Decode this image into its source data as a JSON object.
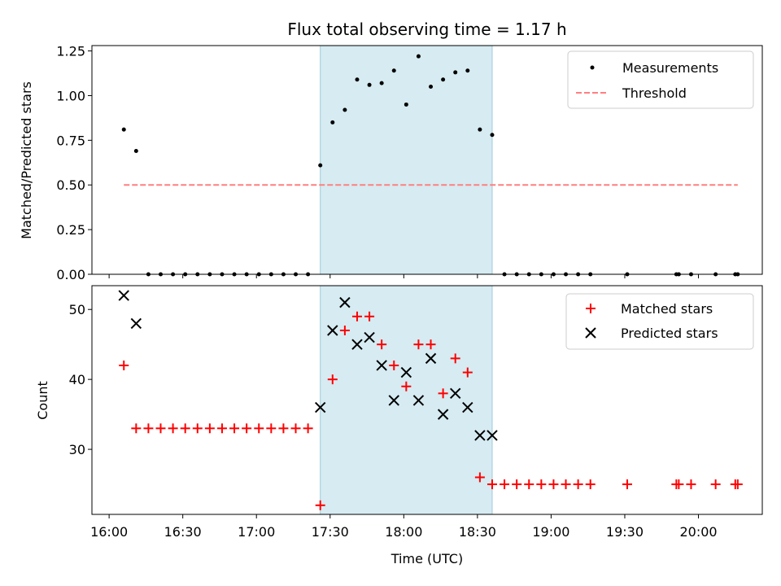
{
  "chart_data": [
    {
      "type": "scatter",
      "title": "Flux total observing time = 1.17 h",
      "xlabel": "",
      "ylabel": "Matched/Predicted stars",
      "xlim": [
        "15:53",
        "20:26"
      ],
      "ylim": [
        0,
        1.28
      ],
      "y_ticks": [
        "0.00",
        "0.25",
        "0.50",
        "0.75",
        "1.00",
        "1.25"
      ],
      "grid": false,
      "legend_position": "top-right",
      "highlight_band": {
        "x_start": "17:26",
        "x_end": "18:36",
        "color": "#add8e6"
      },
      "series": [
        {
          "name": "Measurements",
          "marker": "dot",
          "color": "#000000",
          "x": [
            "16:06",
            "16:11",
            "16:16",
            "16:21",
            "16:26",
            "16:31",
            "16:36",
            "16:41",
            "16:46",
            "16:51",
            "16:56",
            "17:01",
            "17:06",
            "17:11",
            "17:16",
            "17:21",
            "17:26",
            "17:31",
            "17:36",
            "17:41",
            "17:46",
            "17:51",
            "17:56",
            "18:01",
            "18:06",
            "18:11",
            "18:16",
            "18:21",
            "18:26",
            "18:31",
            "18:36",
            "18:41",
            "18:46",
            "18:51",
            "18:56",
            "19:01",
            "19:06",
            "19:11",
            "19:16",
            "19:31",
            "19:51",
            "19:52",
            "19:57",
            "20:07",
            "20:15",
            "20:16"
          ],
          "y": [
            0.81,
            0.69,
            0,
            0,
            0,
            0,
            0,
            0,
            0,
            0,
            0,
            0,
            0,
            0,
            0,
            0,
            0.61,
            0.85,
            0.92,
            1.09,
            1.06,
            1.07,
            1.14,
            0.95,
            1.22,
            1.05,
            1.09,
            1.13,
            1.14,
            0.81,
            0.78,
            0,
            0,
            0,
            0,
            0,
            0,
            0,
            0,
            0,
            0,
            0,
            0,
            0,
            0,
            0
          ]
        },
        {
          "name": "Threshold",
          "style": "dashed",
          "color": "#ff7f7f",
          "x": [
            "16:06",
            "20:16"
          ],
          "y": [
            0.5,
            0.5
          ]
        }
      ]
    },
    {
      "type": "scatter",
      "title": "",
      "xlabel": "Time (UTC)",
      "ylabel": "Count",
      "xlim": [
        "15:53",
        "20:26"
      ],
      "ylim": [
        20.7,
        53.4
      ],
      "y_ticks": [
        "30",
        "40",
        "50"
      ],
      "x_ticks": [
        "16:00",
        "16:30",
        "17:00",
        "17:30",
        "18:00",
        "18:30",
        "19:00",
        "19:30",
        "20:00"
      ],
      "grid": false,
      "legend_position": "top-right",
      "highlight_band": {
        "x_start": "17:26",
        "x_end": "18:36",
        "color": "#add8e6"
      },
      "series": [
        {
          "name": "Matched stars",
          "marker": "plus",
          "color": "#ff0000",
          "x": [
            "16:06",
            "16:11",
            "16:16",
            "16:21",
            "16:26",
            "16:31",
            "16:36",
            "16:41",
            "16:46",
            "16:51",
            "16:56",
            "17:01",
            "17:06",
            "17:11",
            "17:16",
            "17:21",
            "17:26",
            "17:31",
            "17:36",
            "17:41",
            "17:46",
            "17:51",
            "17:56",
            "18:01",
            "18:06",
            "18:11",
            "18:16",
            "18:21",
            "18:26",
            "18:31",
            "18:36",
            "18:41",
            "18:46",
            "18:51",
            "18:56",
            "19:01",
            "19:06",
            "19:11",
            "19:16",
            "19:31",
            "19:51",
            "19:52",
            "19:57",
            "20:07",
            "20:15",
            "20:16"
          ],
          "y": [
            42,
            33,
            33,
            33,
            33,
            33,
            33,
            33,
            33,
            33,
            33,
            33,
            33,
            33,
            33,
            33,
            22,
            40,
            47,
            49,
            49,
            45,
            42,
            39,
            45,
            45,
            38,
            43,
            41,
            26,
            25,
            25,
            25,
            25,
            25,
            25,
            25,
            25,
            25,
            25,
            25,
            25,
            25,
            25,
            25,
            25
          ]
        },
        {
          "name": "Predicted stars",
          "marker": "x",
          "color": "#000000",
          "x": [
            "16:06",
            "16:11",
            "17:26",
            "17:31",
            "17:36",
            "17:41",
            "17:46",
            "17:51",
            "17:56",
            "18:01",
            "18:06",
            "18:11",
            "18:16",
            "18:21",
            "18:26",
            "18:31",
            "18:36"
          ],
          "y": [
            52,
            48,
            36,
            47,
            51,
            45,
            46,
            42,
            37,
            41,
            37,
            43,
            35,
            38,
            36,
            32,
            32
          ]
        }
      ]
    }
  ]
}
